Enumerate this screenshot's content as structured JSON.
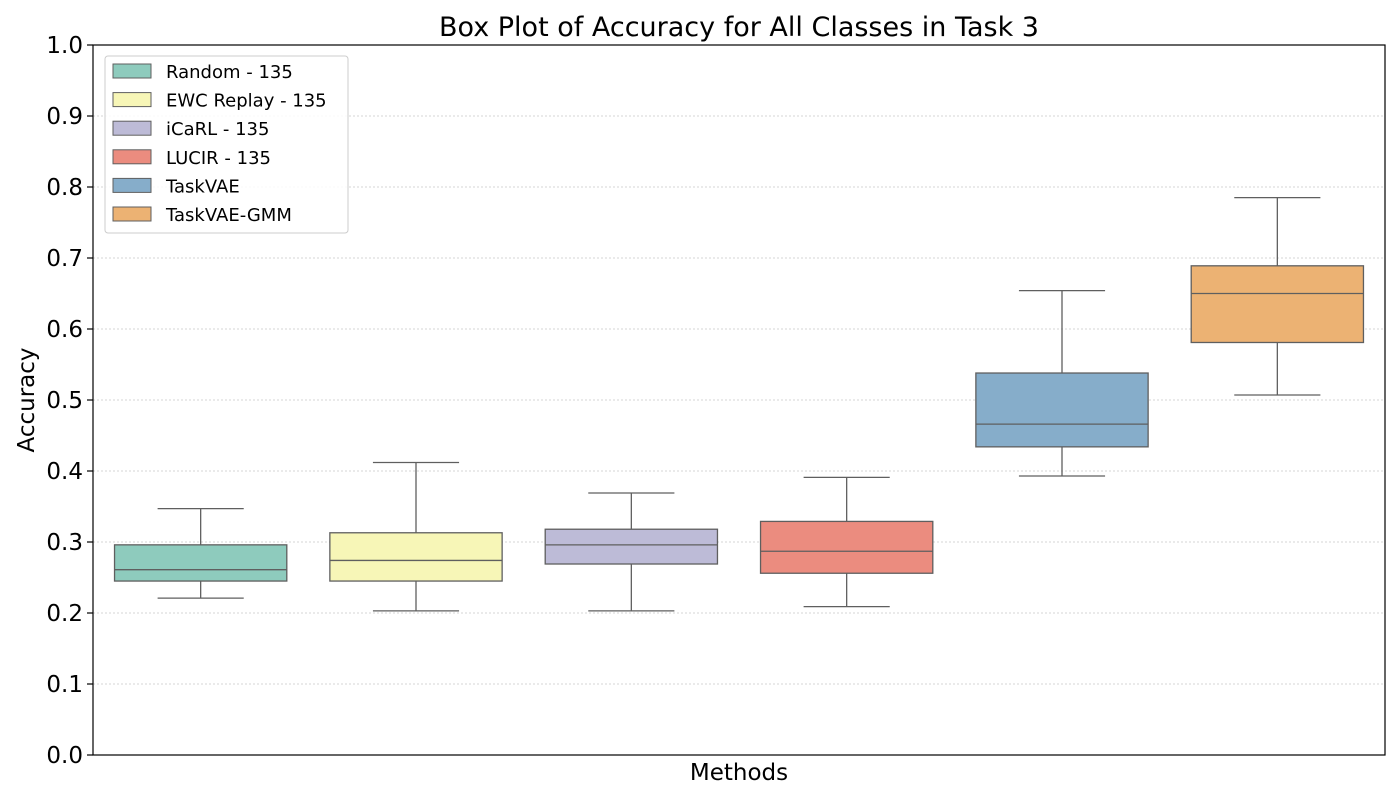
{
  "chart_data": {
    "type": "box",
    "title": "Box Plot of Accuracy for All Classes in Task 3",
    "xlabel": "Methods",
    "ylabel": "Accuracy",
    "ylim": [
      0,
      1
    ],
    "yticks": [
      "0.0",
      "0.1",
      "0.2",
      "0.3",
      "0.4",
      "0.5",
      "0.6",
      "0.7",
      "0.8",
      "0.9",
      "1.0"
    ],
    "grid": "y",
    "legend_position": "top-left",
    "series": [
      {
        "name": "Random - 135",
        "color": "#8ecbbd",
        "min": 0.221,
        "q1": 0.245,
        "median": 0.261,
        "q3": 0.296,
        "max": 0.347
      },
      {
        "name": "EWC Replay - 135",
        "color": "#f7f6b7",
        "min": 0.203,
        "q1": 0.245,
        "median": 0.274,
        "q3": 0.313,
        "max": 0.412
      },
      {
        "name": "iCaRL - 135",
        "color": "#bdbbd7",
        "min": 0.203,
        "q1": 0.269,
        "median": 0.296,
        "q3": 0.318,
        "max": 0.369
      },
      {
        "name": "LUCIR - 135",
        "color": "#eb8c7f",
        "min": 0.209,
        "q1": 0.256,
        "median": 0.287,
        "q3": 0.329,
        "max": 0.391
      },
      {
        "name": "TaskVAE",
        "color": "#86adca",
        "min": 0.393,
        "q1": 0.434,
        "median": 0.466,
        "q3": 0.538,
        "max": 0.654
      },
      {
        "name": "TaskVAE-GMM",
        "color": "#ecb273",
        "min": 0.507,
        "q1": 0.581,
        "median": 0.65,
        "q3": 0.689,
        "max": 0.785
      }
    ]
  }
}
